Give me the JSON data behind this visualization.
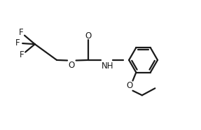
{
  "bg_color": "#ffffff",
  "line_color": "#1a1a1a",
  "text_color": "#1a1a1a",
  "line_width": 1.6,
  "font_size": 8.5,
  "figsize": [
    2.87,
    1.86
  ],
  "dpi": 100,
  "xlim": [
    0,
    10
  ],
  "ylim": [
    0,
    6.5
  ]
}
